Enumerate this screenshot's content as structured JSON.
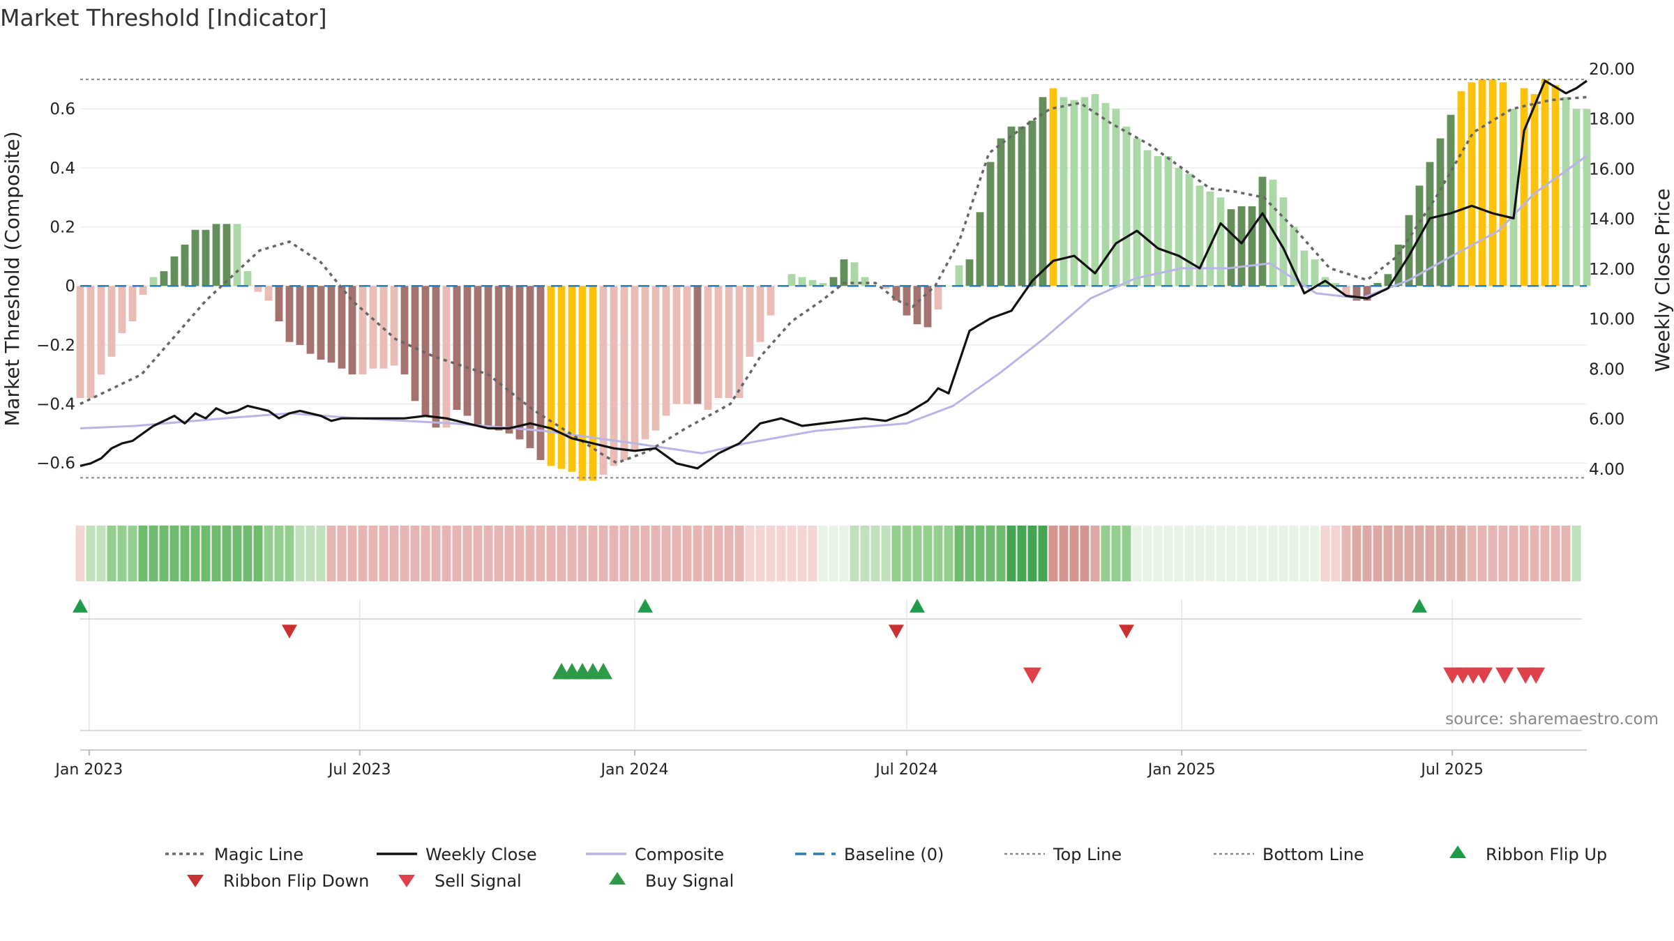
{
  "chart_data": {
    "type": "bar",
    "title": "Market Threshold [Indicator]",
    "ylabel_left": "Market Threshold (Composite)",
    "ylabel_right": "Weekly Close Price",
    "ylim_left": [
      -0.72,
      0.78
    ],
    "ylim_right": [
      2.8,
      20.5
    ],
    "y_ticks_left": [
      0.6,
      0.4,
      0.2,
      0,
      -0.2,
      -0.4,
      -0.6
    ],
    "y_tick_labels_left": [
      "0.6",
      "0.4",
      "0.2",
      "0",
      "−0.2",
      "−0.4",
      "−0.6"
    ],
    "y_ticks_right": [
      20,
      18,
      16,
      14,
      12,
      10,
      8,
      6,
      4
    ],
    "y_tick_labels_right": [
      "20.00",
      "18.00",
      "16.00",
      "14.00",
      "12.00",
      "10.00",
      "8.00",
      "6.00",
      "4.00"
    ],
    "x_start": "2022-12-26",
    "x_end": "2025-09-29",
    "x_ticks": [
      {
        "date": "2023-01-01",
        "label": "Jan 2023"
      },
      {
        "date": "2023-07-01",
        "label": "Jul 2023"
      },
      {
        "date": "2024-01-01",
        "label": "Jan 2024"
      },
      {
        "date": "2024-07-01",
        "label": "Jul 2024"
      },
      {
        "date": "2025-01-01",
        "label": "Jan 2025"
      },
      {
        "date": "2025-07-01",
        "label": "Jul 2025"
      }
    ],
    "top_line": 0.7,
    "bottom_line": -0.65,
    "histogram_week0": "2022-12-26",
    "histogram": [
      -0.38,
      -0.38,
      -0.3,
      -0.24,
      -0.16,
      -0.12,
      -0.03,
      0.03,
      0.05,
      0.1,
      0.14,
      0.19,
      0.19,
      0.21,
      0.21,
      0.21,
      0.05,
      -0.02,
      -0.05,
      -0.12,
      -0.19,
      -0.2,
      -0.23,
      -0.25,
      -0.26,
      -0.28,
      -0.3,
      -0.3,
      -0.28,
      -0.28,
      -0.27,
      -0.3,
      -0.39,
      -0.44,
      -0.48,
      -0.48,
      -0.42,
      -0.44,
      -0.47,
      -0.48,
      -0.49,
      -0.5,
      -0.52,
      -0.55,
      -0.59,
      -0.61,
      -0.62,
      -0.63,
      -0.66,
      -0.66,
      -0.64,
      -0.61,
      -0.59,
      -0.56,
      -0.52,
      -0.49,
      -0.44,
      -0.4,
      -0.4,
      -0.4,
      -0.42,
      -0.38,
      -0.38,
      -0.38,
      -0.24,
      -0.19,
      -0.1,
      0,
      0.04,
      0.03,
      0.02,
      0.01,
      0.03,
      0.09,
      0.08,
      0.03,
      0,
      -0.01,
      -0.05,
      -0.1,
      -0.13,
      -0.14,
      -0.08,
      0,
      0.07,
      0.09,
      0.25,
      0.42,
      0.5,
      0.54,
      0.54,
      0.56,
      0.64,
      0.67,
      0.64,
      0.63,
      0.64,
      0.65,
      0.62,
      0.6,
      0.54,
      0.5,
      0.46,
      0.44,
      0.44,
      0.4,
      0.38,
      0.34,
      0.32,
      0.3,
      0.26,
      0.27,
      0.27,
      0.37,
      0.36,
      0.3,
      0.2,
      0.12,
      0.09,
      0.03,
      0.01,
      -0.03,
      -0.05,
      -0.05,
      0.01,
      0.04,
      0.14,
      0.24,
      0.34,
      0.42,
      0.5,
      0.58,
      0.66,
      0.69,
      0.7,
      0.7,
      0.69,
      0.6,
      0.67,
      0.65,
      0.7,
      0.68,
      0.64,
      0.6,
      0.6
    ],
    "histogram_colors": [
      "light-red",
      "light-red",
      "light-red",
      "light-red",
      "light-red",
      "light-red",
      "light-red",
      "light-green",
      "dark-green",
      "dark-green",
      "dark-green",
      "dark-green",
      "dark-green",
      "dark-green",
      "dark-green",
      "light-green",
      "light-green",
      "light-red",
      "light-red",
      "dark-red",
      "dark-red",
      "dark-red",
      "dark-red",
      "dark-red",
      "dark-red",
      "dark-red",
      "dark-red",
      "light-red",
      "light-red",
      "light-red",
      "light-red",
      "dark-red",
      "dark-red",
      "dark-red",
      "dark-red",
      "light-red",
      "dark-red",
      "dark-red",
      "dark-red",
      "dark-red",
      "dark-red",
      "dark-red",
      "dark-red",
      "dark-red",
      "dark-red",
      "yellow",
      "yellow",
      "yellow",
      "yellow",
      "yellow",
      "light-red",
      "light-red",
      "light-red",
      "light-red",
      "light-red",
      "light-red",
      "light-red",
      "light-red",
      "light-red",
      "dark-red",
      "light-red",
      "light-red",
      "light-red",
      "light-red",
      "light-red",
      "light-red",
      "light-red",
      "light-green",
      "light-green",
      "light-green",
      "light-green",
      "light-green",
      "dark-green",
      "dark-green",
      "light-green",
      "light-green",
      "light-red",
      "light-red",
      "dark-red",
      "dark-red",
      "dark-red",
      "dark-red",
      "light-red",
      "light-red",
      "light-green",
      "dark-green",
      "dark-green",
      "dark-green",
      "dark-green",
      "dark-green",
      "dark-green",
      "dark-green",
      "dark-green",
      "yellow",
      "light-green",
      "light-green",
      "light-green",
      "light-green",
      "light-green",
      "light-green",
      "light-green",
      "light-green",
      "light-green",
      "light-green",
      "light-green",
      "light-green",
      "light-green",
      "light-green",
      "light-green",
      "light-green",
      "dark-green",
      "dark-green",
      "dark-green",
      "dark-green",
      "light-green",
      "light-green",
      "light-green",
      "light-green",
      "light-green",
      "light-green",
      "light-green",
      "light-red",
      "dark-red",
      "dark-red",
      "dark-green",
      "dark-green",
      "dark-green",
      "dark-green",
      "dark-green",
      "dark-green",
      "dark-green",
      "dark-green",
      "yellow",
      "yellow",
      "yellow",
      "yellow",
      "yellow",
      "light-green",
      "yellow",
      "yellow",
      "yellow",
      "yellow",
      "light-green",
      "light-green",
      "light-green"
    ],
    "magic_line": [
      [
        "2022-12-26",
        -0.4
      ],
      [
        "2023-02-05",
        -0.3
      ],
      [
        "2023-03-20",
        -0.05
      ],
      [
        "2023-04-25",
        0.12
      ],
      [
        "2023-05-15",
        0.15
      ],
      [
        "2023-06-05",
        0.08
      ],
      [
        "2023-06-26",
        -0.05
      ],
      [
        "2023-07-25",
        -0.18
      ],
      [
        "2023-08-20",
        -0.24
      ],
      [
        "2023-09-25",
        -0.3
      ],
      [
        "2023-10-25",
        -0.42
      ],
      [
        "2023-11-25",
        -0.52
      ],
      [
        "2023-12-10",
        -0.57
      ],
      [
        "2023-12-20",
        -0.6
      ],
      [
        "2024-01-10",
        -0.56
      ],
      [
        "2024-02-05",
        -0.48
      ],
      [
        "2024-03-05",
        -0.4
      ],
      [
        "2024-03-25",
        -0.24
      ],
      [
        "2024-04-15",
        -0.12
      ],
      [
        "2024-05-05",
        -0.05
      ],
      [
        "2024-05-20",
        0.01
      ],
      [
        "2024-06-10",
        0.01
      ],
      [
        "2024-06-25",
        -0.05
      ],
      [
        "2024-07-05",
        -0.07
      ],
      [
        "2024-07-20",
        0
      ],
      [
        "2024-08-05",
        0.15
      ],
      [
        "2024-08-25",
        0.45
      ],
      [
        "2024-09-20",
        0.55
      ],
      [
        "2024-10-05",
        0.6
      ],
      [
        "2024-10-25",
        0.62
      ],
      [
        "2024-11-15",
        0.55
      ],
      [
        "2024-12-10",
        0.48
      ],
      [
        "2025-01-01",
        0.4
      ],
      [
        "2025-01-20",
        0.33
      ],
      [
        "2025-02-05",
        0.32
      ],
      [
        "2025-02-25",
        0.3
      ],
      [
        "2025-03-20",
        0.18
      ],
      [
        "2025-04-10",
        0.06
      ],
      [
        "2025-05-05",
        0.02
      ],
      [
        "2025-05-25",
        0.1
      ],
      [
        "2025-06-20",
        0.3
      ],
      [
        "2025-07-15",
        0.52
      ],
      [
        "2025-08-10",
        0.6
      ],
      [
        "2025-09-05",
        0.63
      ],
      [
        "2025-09-29",
        0.64
      ]
    ],
    "weekly_close": [
      [
        "2022-12-26",
        4.1
      ],
      [
        "2023-01-02",
        4.2
      ],
      [
        "2023-01-09",
        4.4
      ],
      [
        "2023-01-16",
        4.8
      ],
      [
        "2023-01-23",
        5.0
      ],
      [
        "2023-01-30",
        5.1
      ],
      [
        "2023-02-06",
        5.4
      ],
      [
        "2023-02-13",
        5.7
      ],
      [
        "2023-02-20",
        5.9
      ],
      [
        "2023-02-27",
        6.1
      ],
      [
        "2023-03-06",
        5.8
      ],
      [
        "2023-03-13",
        6.2
      ],
      [
        "2023-03-20",
        6.0
      ],
      [
        "2023-03-27",
        6.4
      ],
      [
        "2023-04-03",
        6.2
      ],
      [
        "2023-04-10",
        6.3
      ],
      [
        "2023-04-17",
        6.5
      ],
      [
        "2023-04-24",
        6.4
      ],
      [
        "2023-05-01",
        6.3
      ],
      [
        "2023-05-08",
        6.0
      ],
      [
        "2023-05-15",
        6.2
      ],
      [
        "2023-05-22",
        6.3
      ],
      [
        "2023-06-05",
        6.1
      ],
      [
        "2023-06-12",
        5.9
      ],
      [
        "2023-06-19",
        6.0
      ],
      [
        "2023-07-03",
        6.0
      ],
      [
        "2023-07-17",
        6.0
      ],
      [
        "2023-07-31",
        6.0
      ],
      [
        "2023-08-14",
        6.1
      ],
      [
        "2023-08-28",
        6.0
      ],
      [
        "2023-09-11",
        5.8
      ],
      [
        "2023-09-25",
        5.6
      ],
      [
        "2023-10-09",
        5.6
      ],
      [
        "2023-10-23",
        5.8
      ],
      [
        "2023-11-06",
        5.6
      ],
      [
        "2023-11-20",
        5.2
      ],
      [
        "2023-12-04",
        5.0
      ],
      [
        "2023-12-18",
        4.8
      ],
      [
        "2024-01-01",
        4.7
      ],
      [
        "2024-01-15",
        4.8
      ],
      [
        "2024-01-29",
        4.2
      ],
      [
        "2024-02-12",
        4.0
      ],
      [
        "2024-02-26",
        4.6
      ],
      [
        "2024-03-11",
        5.0
      ],
      [
        "2024-03-25",
        5.8
      ],
      [
        "2024-04-08",
        6.0
      ],
      [
        "2024-04-22",
        5.7
      ],
      [
        "2024-05-06",
        5.8
      ],
      [
        "2024-05-20",
        5.9
      ],
      [
        "2024-06-03",
        6.0
      ],
      [
        "2024-06-17",
        5.9
      ],
      [
        "2024-07-01",
        6.2
      ],
      [
        "2024-07-15",
        6.7
      ],
      [
        "2024-07-22",
        7.2
      ],
      [
        "2024-07-29",
        7.0
      ],
      [
        "2024-08-12",
        9.5
      ],
      [
        "2024-08-26",
        10.0
      ],
      [
        "2024-09-09",
        10.3
      ],
      [
        "2024-09-23",
        11.5
      ],
      [
        "2024-10-07",
        12.3
      ],
      [
        "2024-10-21",
        12.5
      ],
      [
        "2024-11-04",
        11.8
      ],
      [
        "2024-11-18",
        13.0
      ],
      [
        "2024-12-02",
        13.5
      ],
      [
        "2024-12-16",
        12.8
      ],
      [
        "2024-12-30",
        12.5
      ],
      [
        "2025-01-13",
        12.0
      ],
      [
        "2025-01-27",
        13.8
      ],
      [
        "2025-02-10",
        13.0
      ],
      [
        "2025-02-24",
        14.2
      ],
      [
        "2025-03-10",
        12.8
      ],
      [
        "2025-03-24",
        11.0
      ],
      [
        "2025-04-07",
        11.5
      ],
      [
        "2025-04-21",
        10.9
      ],
      [
        "2025-05-05",
        10.8
      ],
      [
        "2025-05-19",
        11.2
      ],
      [
        "2025-06-02",
        12.5
      ],
      [
        "2025-06-16",
        14.0
      ],
      [
        "2025-06-30",
        14.2
      ],
      [
        "2025-07-14",
        14.5
      ],
      [
        "2025-07-28",
        14.2
      ],
      [
        "2025-08-11",
        14.0
      ],
      [
        "2025-08-18",
        17.5
      ],
      [
        "2025-09-01",
        19.5
      ],
      [
        "2025-09-15",
        19.0
      ],
      [
        "2025-09-22",
        19.2
      ],
      [
        "2025-09-29",
        19.5
      ]
    ],
    "composite": [
      [
        "2022-12-26",
        5.6
      ],
      [
        "2023-02-01",
        5.7
      ],
      [
        "2023-04-01",
        6.0
      ],
      [
        "2023-05-15",
        6.2
      ],
      [
        "2023-07-01",
        6.0
      ],
      [
        "2023-09-01",
        5.8
      ],
      [
        "2023-11-01",
        5.5
      ],
      [
        "2024-01-01",
        5.0
      ],
      [
        "2024-02-15",
        4.6
      ],
      [
        "2024-03-15",
        5.0
      ],
      [
        "2024-05-01",
        5.5
      ],
      [
        "2024-07-01",
        5.8
      ],
      [
        "2024-08-01",
        6.5
      ],
      [
        "2024-09-01",
        7.8
      ],
      [
        "2024-10-01",
        9.2
      ],
      [
        "2024-11-01",
        10.8
      ],
      [
        "2024-12-01",
        11.6
      ],
      [
        "2025-01-01",
        12.0
      ],
      [
        "2025-02-01",
        12.0
      ],
      [
        "2025-03-01",
        12.2
      ],
      [
        "2025-04-01",
        11.0
      ],
      [
        "2025-05-01",
        10.8
      ],
      [
        "2025-06-01",
        11.5
      ],
      [
        "2025-07-01",
        12.5
      ],
      [
        "2025-08-01",
        13.5
      ],
      [
        "2025-08-25",
        15.0
      ],
      [
        "2025-09-29",
        16.5
      ]
    ],
    "ribbon": [
      1,
      2,
      2,
      3,
      3,
      3,
      4,
      4,
      4,
      4,
      4,
      4,
      4,
      4,
      4,
      4,
      4,
      4,
      3,
      3,
      3,
      2,
      2,
      2,
      2,
      2,
      2,
      2,
      2,
      2,
      2,
      2,
      2,
      2,
      2,
      2,
      2,
      2,
      2,
      2,
      2,
      2,
      2,
      2,
      2,
      2,
      2,
      2,
      2,
      2,
      2,
      2,
      2,
      2,
      2,
      2,
      2,
      2,
      2,
      2,
      2,
      2,
      2,
      2,
      1,
      1,
      1,
      1,
      1,
      1,
      1,
      1,
      1,
      1,
      2,
      2,
      2,
      2,
      3,
      3,
      3,
      3,
      3,
      3,
      4,
      4,
      4,
      4,
      4,
      5,
      5,
      5,
      5,
      4,
      4,
      4,
      4,
      3,
      3,
      3,
      3,
      1,
      1,
      1,
      1,
      1,
      1,
      1,
      1,
      1,
      1,
      1,
      1,
      1,
      1,
      1,
      1,
      1,
      1,
      1,
      1,
      2,
      3,
      3,
      3,
      3,
      3,
      3,
      3,
      3,
      3,
      3,
      3,
      2,
      2,
      2,
      2,
      2,
      2,
      2,
      2,
      2,
      2,
      2
    ],
    "ribbon_color_sign": [
      -1,
      1,
      1,
      1,
      1,
      1,
      1,
      1,
      1,
      1,
      1,
      1,
      1,
      1,
      1,
      1,
      1,
      1,
      1,
      1,
      1,
      1,
      1,
      1,
      -1,
      -1,
      -1,
      -1,
      -1,
      -1,
      -1,
      -1,
      -1,
      -1,
      -1,
      -1,
      -1,
      -1,
      -1,
      -1,
      -1,
      -1,
      -1,
      -1,
      -1,
      -1,
      -1,
      -1,
      -1,
      -1,
      -1,
      -1,
      -1,
      -1,
      -1,
      -1,
      -1,
      -1,
      -1,
      -1,
      -1,
      -1,
      -1,
      -1,
      -1,
      -1,
      -1,
      -1,
      -1,
      -1,
      -1,
      1,
      1,
      1,
      1,
      1,
      1,
      1,
      1,
      1,
      1,
      1,
      1,
      1,
      1,
      1,
      1,
      1,
      1,
      1,
      1,
      1,
      1,
      -1,
      -1,
      -1,
      -1,
      -1,
      1,
      1,
      1,
      1,
      1,
      1,
      1,
      1,
      1,
      1,
      1,
      1,
      1,
      1,
      1,
      1,
      1,
      1,
      1,
      1,
      1,
      -1,
      -1,
      -1,
      -1,
      -1,
      -1,
      -1,
      -1,
      -1,
      -1,
      -1,
      -1,
      -1,
      -1,
      -1,
      -1,
      -1,
      -1,
      -1,
      -1,
      -1,
      -1,
      -1,
      -1,
      1,
      1,
      1,
      1,
      1,
      1,
      1,
      1,
      1,
      1,
      1,
      1,
      1
    ],
    "ribbon_flip_up": [
      "2022-12-26",
      "2024-01-08",
      "2024-07-08",
      "2025-06-09"
    ],
    "ribbon_flip_down": [
      "2023-05-15",
      "2024-06-24",
      "2024-11-25"
    ],
    "buy_signals": [
      "2023-11-13",
      "2023-11-20",
      "2023-11-27",
      "2023-12-04",
      "2023-12-11"
    ],
    "sell_signals": [
      "2024-09-23",
      "2025-07-01",
      "2025-07-08",
      "2025-07-15",
      "2025-07-22",
      "2025-08-05",
      "2025-08-19",
      "2025-08-26"
    ],
    "legend_placement": "bottom",
    "legend": [
      {
        "label": "Magic Line",
        "kind": "dotted",
        "color": "#666666"
      },
      {
        "label": "Weekly Close",
        "kind": "line",
        "color": "#111111"
      },
      {
        "label": "Composite",
        "kind": "line",
        "color": "#b9b5e6"
      },
      {
        "label": "Baseline (0)",
        "kind": "dashed",
        "color": "#2e7bb0"
      },
      {
        "label": "Top Line",
        "kind": "dotted-thin",
        "color": "#888888"
      },
      {
        "label": "Bottom Line",
        "kind": "dotted-thin",
        "color": "#888888"
      },
      {
        "label": "Ribbon Flip Up",
        "kind": "triangle-up",
        "color": "#1f9a48"
      },
      {
        "label": "Ribbon Flip Down",
        "kind": "triangle-down",
        "color": "#c93030"
      },
      {
        "label": "Sell Signal",
        "kind": "triangle-down",
        "color": "#e0404a"
      },
      {
        "label": "Buy Signal",
        "kind": "triangle-up",
        "color": "#2e9a48"
      }
    ],
    "source_note": "source: sharemaestro.com",
    "grid": true
  },
  "colors": {
    "light-red": "#e9bcb6",
    "dark-red": "#a5736f",
    "light-green": "#acd8a8",
    "dark-green": "#648f5b",
    "yellow": "#fcc20c",
    "magic": "#666666",
    "close": "#111111",
    "composite": "#b9b5e6",
    "baseline": "#2e7bb0"
  }
}
